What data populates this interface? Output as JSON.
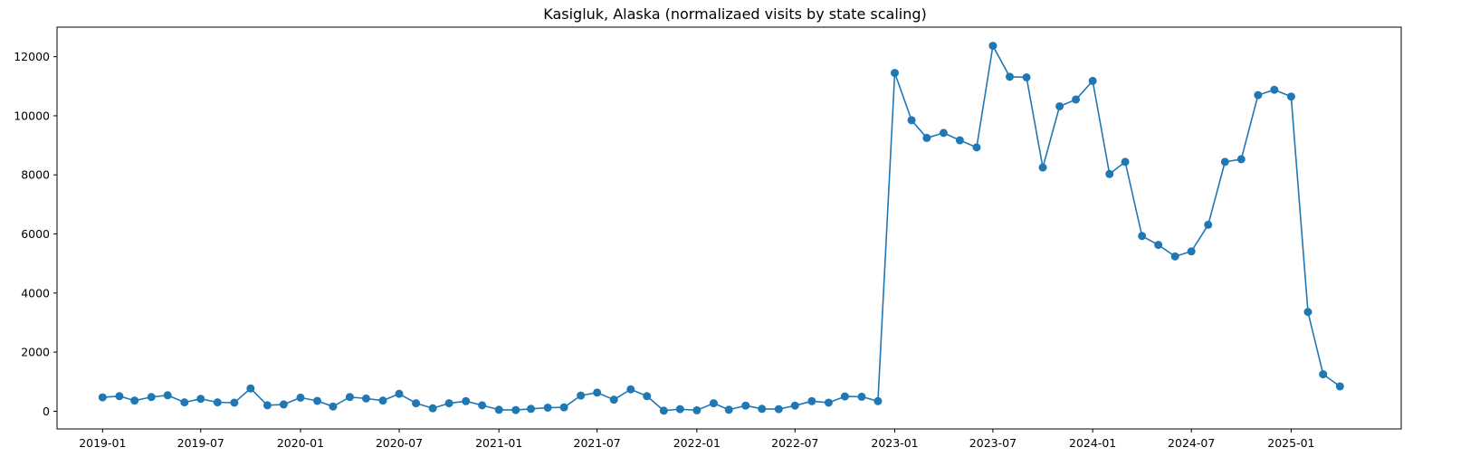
{
  "chart_data": {
    "type": "line",
    "title": "Kasigluk, Alaska (normalizaed visits by state scaling)",
    "xlabel": "",
    "ylabel": "",
    "marker": "circle",
    "color": "#1f77b4",
    "grid": false,
    "legend": "none",
    "xlim": [
      "2018-10-09",
      "2025-07-23"
    ],
    "ylim": [
      -600,
      13000
    ],
    "x_ticks": [
      "2019-01",
      "2019-07",
      "2020-01",
      "2020-07",
      "2021-01",
      "2021-07",
      "2022-01",
      "2022-07",
      "2023-01",
      "2023-07",
      "2024-01",
      "2024-07",
      "2025-01"
    ],
    "y_ticks": [
      0,
      2000,
      4000,
      6000,
      8000,
      10000,
      12000
    ],
    "series": [
      {
        "x": [
          "2019-01",
          "2019-02",
          "2019-03",
          "2019-04",
          "2019-05",
          "2019-06",
          "2019-07",
          "2019-08",
          "2019-09",
          "2019-10",
          "2019-11",
          "2019-12",
          "2020-01",
          "2020-02",
          "2020-03",
          "2020-04",
          "2020-05",
          "2020-06",
          "2020-07",
          "2020-08",
          "2020-09",
          "2020-10",
          "2020-11",
          "2020-12",
          "2021-01",
          "2021-02",
          "2021-03",
          "2021-04",
          "2021-05",
          "2021-06",
          "2021-07",
          "2021-08",
          "2021-09",
          "2021-10",
          "2021-11",
          "2021-12",
          "2022-01",
          "2022-02",
          "2022-03",
          "2022-04",
          "2022-05",
          "2022-06",
          "2022-07",
          "2022-08",
          "2022-09",
          "2022-10",
          "2022-11",
          "2022-12",
          "2023-01",
          "2023-02",
          "2023-03",
          "2023-04",
          "2023-05",
          "2023-06",
          "2023-07",
          "2023-08",
          "2023-09",
          "2023-10",
          "2023-11",
          "2023-12",
          "2024-01",
          "2024-02",
          "2024-03",
          "2024-04",
          "2024-05",
          "2024-06",
          "2024-07",
          "2024-08",
          "2024-09",
          "2024-10",
          "2024-11",
          "2024-12",
          "2025-01",
          "2025-02",
          "2025-03",
          "2025-04"
        ],
        "values": [
          470,
          510,
          360,
          480,
          540,
          300,
          420,
          300,
          290,
          770,
          200,
          230,
          460,
          350,
          160,
          480,
          430,
          360,
          590,
          270,
          100,
          270,
          340,
          200,
          50,
          40,
          80,
          120,
          130,
          530,
          630,
          390,
          740,
          510,
          20,
          70,
          30,
          270,
          50,
          190,
          80,
          70,
          190,
          340,
          290,
          500,
          490,
          340,
          11450,
          9850,
          9250,
          9420,
          9170,
          8930,
          12370,
          11320,
          11300,
          8250,
          10320,
          10550,
          11180,
          8030,
          8440,
          5930,
          5630,
          5240,
          5410,
          6310,
          8440,
          8530,
          10700,
          10880,
          10650,
          3360,
          1250,
          840
        ]
      }
    ]
  }
}
